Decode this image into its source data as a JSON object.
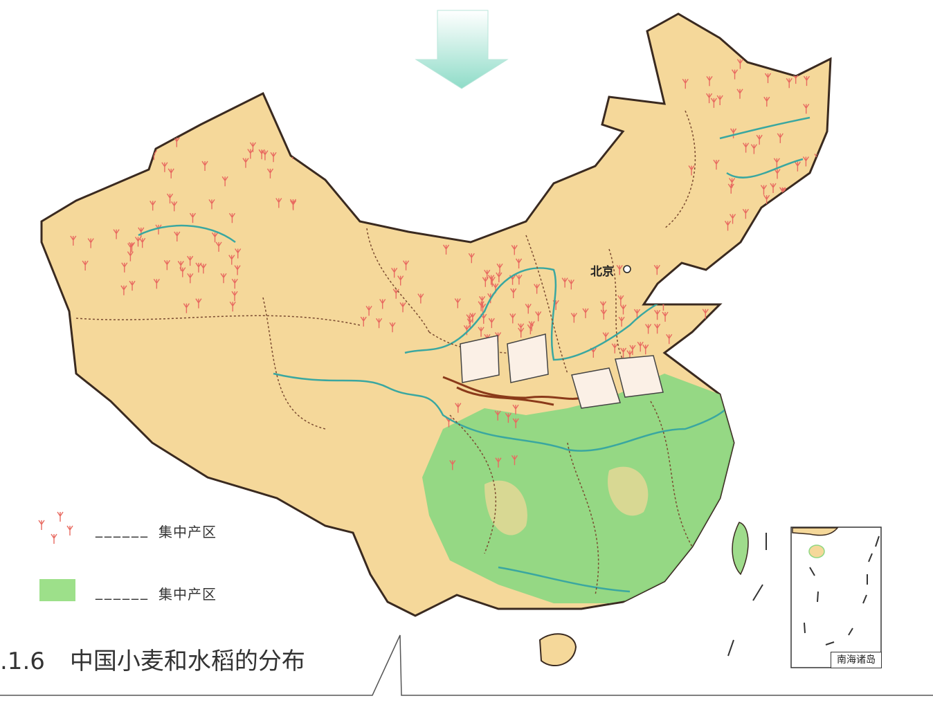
{
  "map": {
    "caption_number": ".1.6",
    "caption_title": "中国小麦和水稻的分布",
    "city_label": "北京",
    "inset_label": "南海诸岛",
    "legend": [
      {
        "symbol": "wheat-symbol",
        "blank": "______",
        "label": "集中产区",
        "color": "#e86a60"
      },
      {
        "symbol": "green-area",
        "blank": "______",
        "label": "集中产区",
        "color": "#9de08a"
      }
    ],
    "colors": {
      "land": "#f5d89a",
      "rice_area": "#8fd883",
      "river": "#3aa7a0",
      "wheat_marks": "#e86a60",
      "border": "#3a2a20",
      "arrow": "#bfeee0"
    }
  }
}
